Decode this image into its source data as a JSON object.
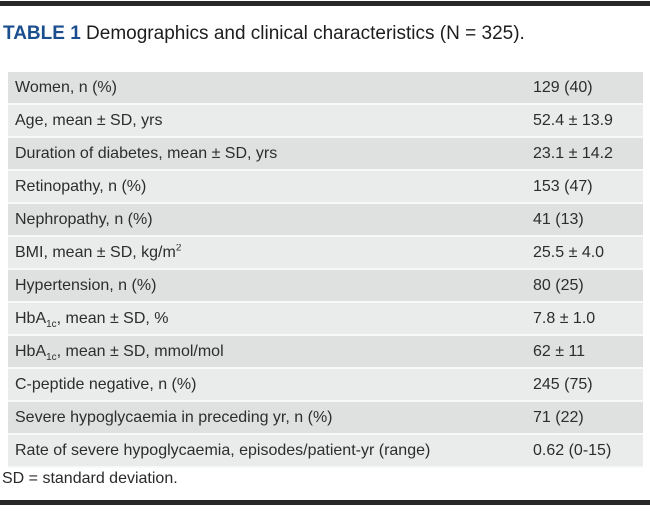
{
  "page": {
    "title_label": "TABLE 1",
    "title_text": " Demographics and clinical characteristics (N = 325).",
    "footnote": "SD = standard deviation."
  },
  "table": {
    "rows": [
      {
        "label": "Women, n (%)",
        "value": "129 (40)"
      },
      {
        "label": "Age, mean ± SD, yrs",
        "value": "52.4 ± 13.9"
      },
      {
        "label": "Duration of diabetes, mean ± SD, yrs",
        "value": "23.1 ± 14.2"
      },
      {
        "label": "Retinopathy, n (%)",
        "value": "153 (47)"
      },
      {
        "label": "Nephropathy, n (%)",
        "value": "41 (13)"
      },
      {
        "label": "BMI, mean ± SD, kg/m^2^",
        "value": "25.5 ± 4.0"
      },
      {
        "label": "Hypertension, n (%)",
        "value": "80 (25)"
      },
      {
        "label": "HbA~1c~, mean ± SD, %",
        "value": "7.8 ± 1.0"
      },
      {
        "label": "HbA~1c~, mean ± SD, mmol/mol",
        "value": "62 ± 11"
      },
      {
        "label": "C-peptide negative, n (%)",
        "value": "245 (75)"
      },
      {
        "label": "Severe hypoglycaemia in preceding yr, n (%)",
        "value": "71 (22)"
      },
      {
        "label": "Rate of severe hypoglycaemia, episodes/patient-yr (range)",
        "value": "0.62 (0-15)"
      }
    ]
  },
  "colors": {
    "accent_blue": "#1b4e8f",
    "row_dark": "#dfe0e0",
    "row_light": "#eaebeb",
    "rule_bar": "#282828",
    "text": "#2d2d2d"
  }
}
